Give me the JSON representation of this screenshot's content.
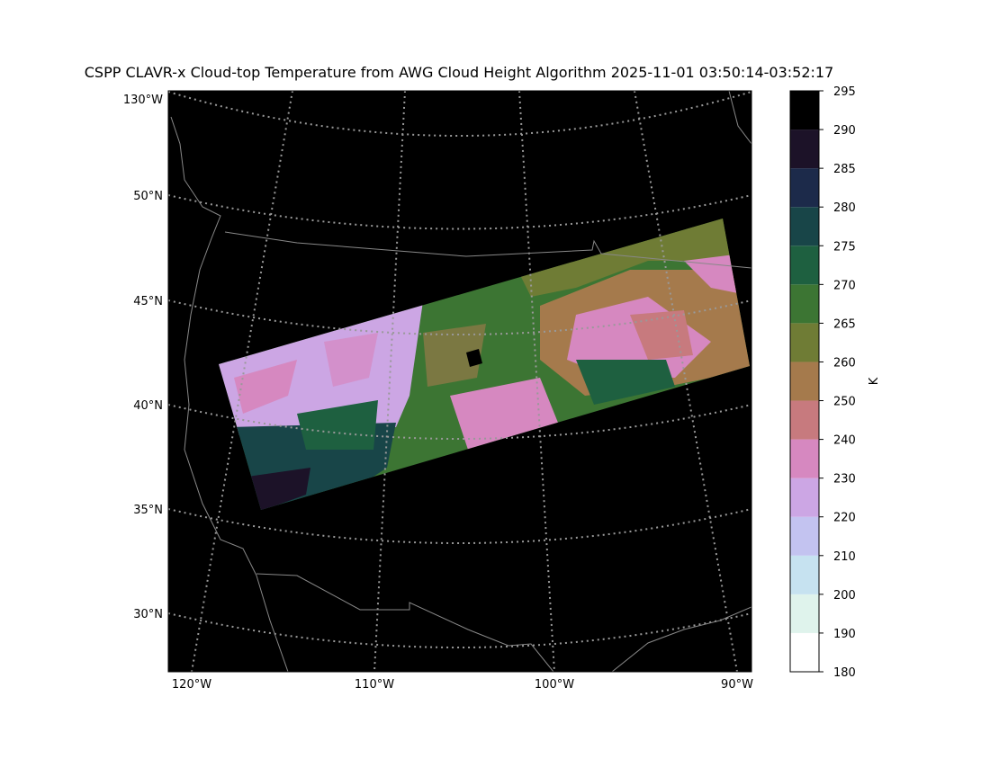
{
  "title": "CSPP CLAVR-x Cloud-top Temperature from AWG Cloud Height Algorithm 2025-11-01 03:50:14-03:52:17",
  "map": {
    "lat_labels": [
      "130°W",
      "50°N",
      "45°N",
      "40°N",
      "35°N",
      "30°N"
    ],
    "lon_labels": [
      "120°W",
      "110°W",
      "100°W",
      "90°W"
    ]
  },
  "colorbar": {
    "label": "K",
    "ticks": [
      180,
      190,
      200,
      210,
      220,
      230,
      240,
      250,
      260,
      265,
      270,
      275,
      280,
      285,
      290,
      295
    ],
    "colors": [
      "#ffffff",
      "#dff3ec",
      "#c6e2f0",
      "#c3c3f0",
      "#cca6e4",
      "#d688c0",
      "#c77a7e",
      "#a57a4c",
      "#6f7c35",
      "#3c7533",
      "#1e6040",
      "#184548",
      "#1c2a4a",
      "#1c1228",
      "#000000"
    ]
  }
}
